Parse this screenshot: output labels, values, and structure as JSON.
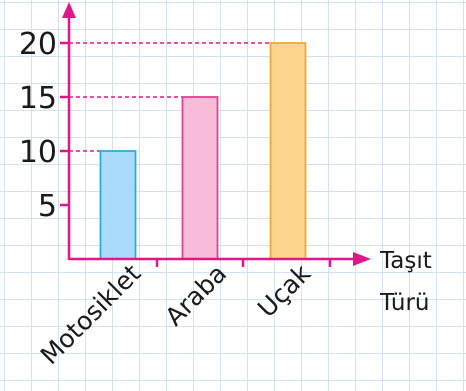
{
  "chart_data": {
    "type": "bar",
    "categories": [
      "Motosiklet",
      "Araba",
      "Uçak"
    ],
    "values": [
      10,
      15,
      20
    ],
    "yticks": [
      5,
      10,
      15,
      20
    ],
    "ylim": [
      0,
      20
    ],
    "xlabel": [
      "Taşıt",
      "Türü"
    ],
    "ylabel": "",
    "title": "",
    "grid": true,
    "colors": {
      "bars": [
        {
          "fill": "#a8dcfa",
          "stroke": "#2aaed8"
        },
        {
          "fill": "#f6bcd8",
          "stroke": "#e0448e"
        },
        {
          "fill": "#fdd58e",
          "stroke": "#f0a83c"
        }
      ],
      "axis": "#e0168b",
      "guide": "#e0168b"
    }
  }
}
